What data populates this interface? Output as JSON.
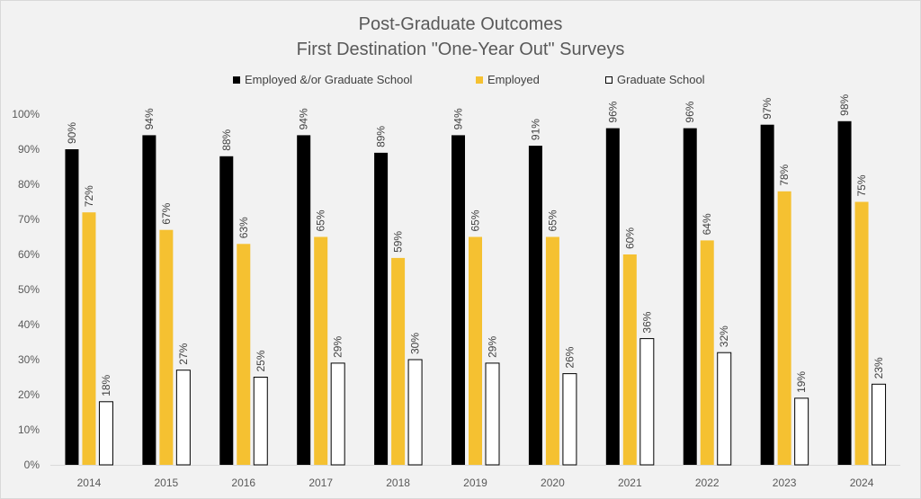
{
  "chart_data": {
    "type": "bar",
    "title": "Post-Graduate Outcomes",
    "subtitle": "First Destination \"One-Year Out\" Surveys",
    "xlabel": "",
    "ylabel": "",
    "categories": [
      "2014",
      "2015",
      "2016",
      "2017",
      "2018",
      "2019",
      "2020",
      "2021",
      "2022",
      "2023",
      "2024"
    ],
    "series": [
      {
        "name": "Employed &/or Graduate School",
        "color": "#000000",
        "values": [
          90,
          94,
          88,
          94,
          89,
          94,
          91,
          96,
          96,
          97,
          98
        ]
      },
      {
        "name": "Employed",
        "color": "#f5c131",
        "values": [
          72,
          67,
          63,
          65,
          59,
          65,
          65,
          60,
          64,
          78,
          75
        ]
      },
      {
        "name": "Graduate School",
        "color": "#ffffff",
        "values": [
          18,
          27,
          25,
          29,
          30,
          29,
          26,
          36,
          32,
          19,
          23
        ]
      }
    ],
    "ylim": [
      0,
      100
    ],
    "yticks": [
      "0%",
      "10%",
      "20%",
      "30%",
      "40%",
      "50%",
      "60%",
      "70%",
      "80%",
      "90%",
      "100%"
    ],
    "value_suffix": "%",
    "grid": false,
    "legend_position": "top"
  }
}
